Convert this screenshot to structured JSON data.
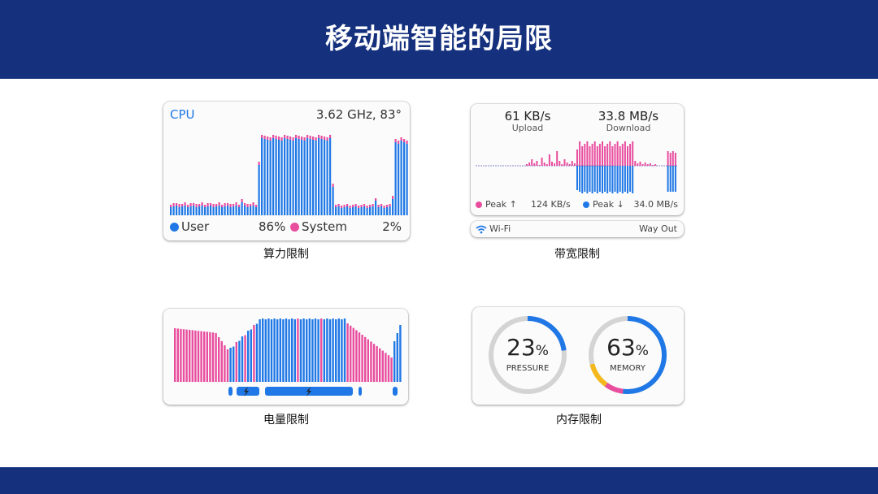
{
  "title": "移动端智能的局限",
  "cpu": {
    "label": "CPU",
    "freq_temp": "3.62 GHz, 83°",
    "user_label": "User",
    "user_pct": "86%",
    "system_label": "System",
    "system_pct": "2%",
    "caption": "算力限制",
    "colors": {
      "user": "#1f78e6",
      "system": "#e84d9e",
      "label": "#1f78e6"
    }
  },
  "network": {
    "upload_value": "61 KB/s",
    "upload_label": "Upload",
    "download_value": "33.8 MB/s",
    "download_label": "Download",
    "peak_up_label": "Peak ↑",
    "peak_up_value": "124 KB/s",
    "peak_down_label": "Peak ↓",
    "peak_down_value": "34.0 MB/s",
    "wifi_icon": "wifi-icon",
    "wifi_label": "Wi-Fi",
    "wifi_name": "Way Out",
    "caption": "带宽限制"
  },
  "battery": {
    "caption": "电量限制",
    "charge_icon": "lightning-icon"
  },
  "memory": {
    "pressure_value": "23",
    "pressure_unit": "%",
    "pressure_label": "PRESSURE",
    "pressure_fraction": 0.23,
    "memory_value": "63",
    "memory_unit": "%",
    "memory_label": "MEMORY",
    "memory_segments": {
      "blue": 0.52,
      "pink": 0.08,
      "yellow": 0.11
    },
    "caption": "内存限制",
    "colors": {
      "blue": "#1f78e6",
      "pink": "#e84d9e",
      "yellow": "#f5b81c",
      "track": "#d4d4d4"
    }
  }
}
